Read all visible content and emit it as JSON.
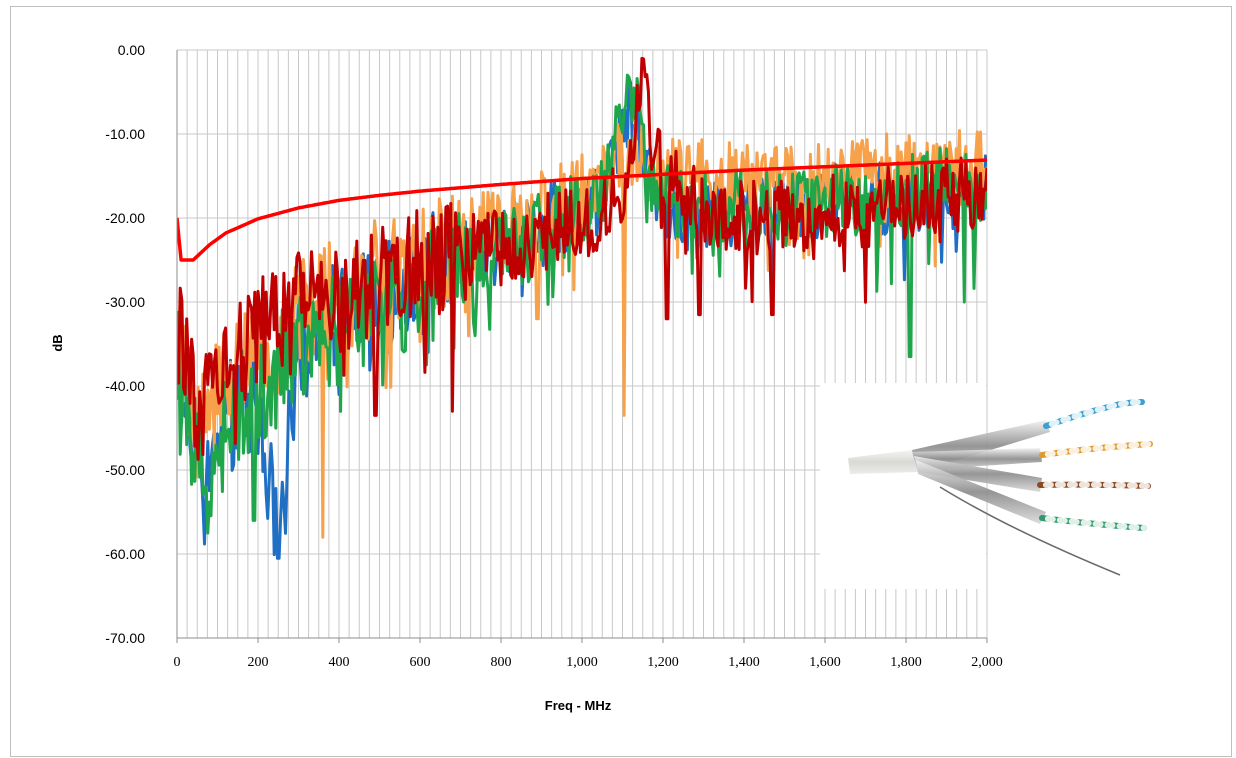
{
  "chart_data": {
    "type": "line",
    "xlabel": "Freq - MHz",
    "ylabel": "dB",
    "xlim": [
      0,
      2000
    ],
    "ylim": [
      -70,
      0
    ],
    "x_ticks": [
      "0",
      "200",
      "400",
      "600",
      "800",
      "1,000",
      "1,200",
      "1,400",
      "1,600",
      "1,800",
      "2,000"
    ],
    "y_ticks": [
      "0.00",
      "-10.00",
      "-20.00",
      "-30.00",
      "-40.00",
      "-50.00",
      "-60.00",
      "-70.00"
    ],
    "grid": "vertical and horizontal",
    "inset_image": "shielded-twisted-pair-cable",
    "limit_line": {
      "color": "#ff0000",
      "x": [
        0,
        10,
        40,
        80,
        120,
        200,
        300,
        400,
        500,
        600,
        800,
        1000,
        1200,
        1400,
        1600,
        1800,
        2000
      ],
      "y": [
        -20.0,
        -25.0,
        -25.0,
        -23.2,
        -21.8,
        -20.1,
        -18.8,
        -17.9,
        -17.3,
        -16.8,
        -16.0,
        -15.3,
        -14.8,
        -14.3,
        -13.9,
        -13.5,
        -13.1
      ]
    },
    "series": [
      {
        "color": "#1f6fc5",
        "x": [
          0,
          20,
          40,
          60,
          80,
          100,
          150,
          200,
          250,
          300,
          400,
          500,
          600,
          700,
          800,
          900,
          1000,
          1050,
          1100,
          1120,
          1150,
          1200,
          1300,
          1400,
          1500,
          1600,
          1700,
          1800,
          1900,
          2000
        ],
        "y": [
          -33,
          -40,
          -45,
          -48,
          -52,
          -46,
          -42,
          -40,
          -60.5,
          -35,
          -32,
          -30,
          -27,
          -25,
          -23,
          -21,
          -19,
          -17,
          -9,
          -6,
          -14,
          -18,
          -19,
          -19,
          -20,
          -18,
          -18,
          -17,
          -17,
          -16
        ],
        "dips": [
          [
            65,
            -54
          ],
          [
            250,
            -60.5
          ],
          [
            400,
            -41
          ],
          [
            620,
            -36
          ],
          [
            1470,
            -29
          ]
        ]
      },
      {
        "color": "#f7a14a",
        "x": [
          0,
          20,
          40,
          60,
          80,
          100,
          150,
          200,
          250,
          300,
          400,
          500,
          600,
          700,
          800,
          900,
          1000,
          1050,
          1100,
          1120,
          1150,
          1200,
          1300,
          1400,
          1500,
          1600,
          1700,
          1800,
          1900,
          2000
        ],
        "y": [
          -34,
          -40,
          -44,
          -45,
          -44,
          -40,
          -38,
          -36,
          -35,
          -32,
          -29,
          -27,
          -25,
          -23,
          -21,
          -19,
          -17,
          -16,
          -12,
          -12,
          -13,
          -15,
          -15,
          -15,
          -16,
          -15,
          -15,
          -14,
          -14,
          -14
        ],
        "dips": [
          [
            360,
            -58
          ],
          [
            1105,
            -43.5
          ],
          [
            890,
            -32
          ]
        ]
      },
      {
        "color": "#1fa64a",
        "x": [
          0,
          20,
          40,
          60,
          80,
          100,
          150,
          200,
          250,
          300,
          400,
          500,
          600,
          700,
          800,
          900,
          1000,
          1050,
          1100,
          1120,
          1150,
          1200,
          1300,
          1400,
          1500,
          1600,
          1700,
          1800,
          1900,
          2000
        ],
        "y": [
          -35,
          -42,
          -47,
          -50,
          -52,
          -47,
          -43,
          -40,
          -38,
          -36,
          -33,
          -31,
          -28,
          -26,
          -24,
          -22,
          -19,
          -18,
          -8,
          -3,
          -12,
          -18,
          -19,
          -18,
          -19,
          -18,
          -18,
          -17,
          -16,
          -16
        ],
        "dips": [
          [
            75,
            -57.5
          ],
          [
            190,
            -56
          ],
          [
            1810,
            -36.5
          ],
          [
            1945,
            -30
          ]
        ]
      },
      {
        "color": "#c00000",
        "x": [
          0,
          20,
          40,
          60,
          80,
          100,
          150,
          200,
          250,
          300,
          400,
          500,
          600,
          700,
          800,
          900,
          1000,
          1050,
          1100,
          1120,
          1150,
          1200,
          1300,
          1400,
          1500,
          1600,
          1700,
          1800,
          1900,
          2000
        ],
        "y": [
          -33,
          -38,
          -41,
          -43,
          -42,
          -40,
          -36,
          -34,
          -33,
          -31,
          -29,
          -27,
          -26,
          -25,
          -23,
          -22,
          -21,
          -20,
          -16,
          -12,
          -4,
          -15,
          -19,
          -20,
          -20,
          -19,
          -19,
          -18,
          -17,
          -17
        ],
        "dips": [
          [
            490,
            -43.5
          ],
          [
            680,
            -43
          ],
          [
            1290,
            -31.5
          ],
          [
            1470,
            -31.5
          ],
          [
            1210,
            -32
          ]
        ]
      }
    ]
  }
}
